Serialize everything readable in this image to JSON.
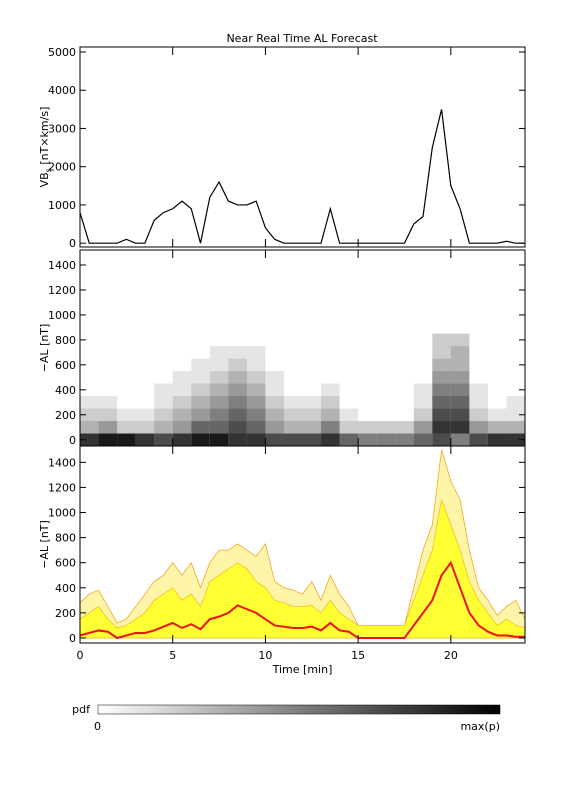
{
  "title": "Near Real Time AL Forecast",
  "chart_data": [
    {
      "type": "line",
      "ylabel": "VB",
      "ylabel_sub": "s",
      "ylabel_unit": " [nT×km/s]",
      "xlim": [
        0,
        24
      ],
      "xticks": [
        0,
        5,
        10,
        15,
        20
      ],
      "show_xticklabels": false,
      "ylim": [
        -100,
        5130
      ],
      "yticks": [
        0,
        1000,
        2000,
        3000,
        4000,
        5000
      ],
      "x": [
        0,
        0.5,
        1,
        1.5,
        2,
        2.5,
        3,
        3.5,
        4,
        4.5,
        5,
        5.5,
        6,
        6.5,
        7,
        7.5,
        8,
        8.5,
        9,
        9.5,
        10,
        10.5,
        11,
        11.5,
        12,
        12.5,
        13,
        13.5,
        14,
        14.5,
        15,
        15.5,
        16,
        16.5,
        17,
        17.5,
        18,
        18.5,
        19,
        19.5,
        20,
        20.5,
        21,
        21.5,
        22,
        22.5,
        23,
        23.5,
        24
      ],
      "series": [
        {
          "color": "#000000",
          "values": [
            800,
            0,
            0,
            0,
            0,
            100,
            0,
            0,
            600,
            800,
            900,
            1100,
            900,
            0,
            1200,
            1600,
            1100,
            1000,
            1000,
            1100,
            400,
            100,
            0,
            0,
            0,
            0,
            0,
            900,
            0,
            0,
            0,
            0,
            0,
            0,
            0,
            0,
            500,
            700,
            2500,
            3500,
            1500,
            900,
            0,
            0,
            0,
            0,
            50,
            0,
            0
          ]
        }
      ]
    },
    {
      "type": "heatmap",
      "ylabel": "−AL [nT]",
      "xlim": [
        0,
        24
      ],
      "xticks": [
        0,
        5,
        10,
        15,
        20
      ],
      "show_xticklabels": false,
      "ylim": [
        -50,
        1520
      ],
      "yticks": [
        0,
        200,
        400,
        600,
        800,
        1000,
        1200,
        1400
      ],
      "color": "#000000",
      "x_edges": [
        0,
        1,
        2,
        3,
        4,
        5,
        6,
        7,
        8,
        9,
        10,
        11,
        12,
        13,
        14,
        15,
        16,
        17,
        18,
        19,
        20,
        21,
        22,
        23,
        24
      ],
      "y_edges": [
        -50,
        50,
        150,
        250,
        350,
        450,
        550,
        650,
        750,
        850
      ],
      "z": [
        [
          0.8,
          0.9,
          0.9,
          0.8,
          0.7,
          0.8,
          0.9,
          0.9,
          0.8,
          0.8,
          0.7,
          0.7,
          0.7,
          0.8,
          0.6,
          0.5,
          0.5,
          0.5,
          0.6,
          0.7,
          0.5,
          0.7,
          0.8,
          0.8
        ],
        [
          0.3,
          0.4,
          0.2,
          0.2,
          0.3,
          0.4,
          0.6,
          0.6,
          0.7,
          0.6,
          0.4,
          0.3,
          0.3,
          0.5,
          0.2,
          0.2,
          0.2,
          0.2,
          0.4,
          0.8,
          0.8,
          0.4,
          0.3,
          0.3
        ],
        [
          0.2,
          0.2,
          0.1,
          0.1,
          0.2,
          0.3,
          0.4,
          0.5,
          0.6,
          0.5,
          0.3,
          0.2,
          0.2,
          0.3,
          0.1,
          0,
          0,
          0,
          0.2,
          0.7,
          0.7,
          0.2,
          0.1,
          0.1
        ],
        [
          0.1,
          0.1,
          0,
          0,
          0.1,
          0.2,
          0.3,
          0.4,
          0.5,
          0.4,
          0.2,
          0.1,
          0.1,
          0.2,
          0,
          0,
          0,
          0,
          0.1,
          0.6,
          0.6,
          0.1,
          0,
          0.1
        ],
        [
          0,
          0,
          0,
          0,
          0.1,
          0.1,
          0.2,
          0.3,
          0.4,
          0.3,
          0.1,
          0,
          0,
          0.1,
          0,
          0,
          0,
          0,
          0.1,
          0.5,
          0.5,
          0.1,
          0,
          0
        ],
        [
          0,
          0,
          0,
          0,
          0,
          0.1,
          0.1,
          0.2,
          0.3,
          0.2,
          0.1,
          0,
          0,
          0,
          0,
          0,
          0,
          0,
          0,
          0.4,
          0.4,
          0,
          0,
          0
        ],
        [
          0,
          0,
          0,
          0,
          0,
          0,
          0.1,
          0.1,
          0.2,
          0.1,
          0,
          0,
          0,
          0,
          0,
          0,
          0,
          0,
          0,
          0.3,
          0.3,
          0,
          0,
          0
        ],
        [
          0,
          0,
          0,
          0,
          0,
          0,
          0,
          0.1,
          0.1,
          0.1,
          0,
          0,
          0,
          0,
          0,
          0,
          0,
          0,
          0,
          0.2,
          0.3,
          0,
          0,
          0
        ],
        [
          0,
          0,
          0,
          0,
          0,
          0,
          0,
          0,
          0,
          0,
          0,
          0,
          0,
          0,
          0,
          0,
          0,
          0,
          0,
          0.2,
          0.2,
          0,
          0,
          0
        ]
      ]
    },
    {
      "type": "area",
      "ylabel": "−AL [nT]",
      "xlabel": "Time [min]",
      "xlim": [
        0,
        24
      ],
      "xticks": [
        0,
        5,
        10,
        15,
        20
      ],
      "show_xticklabels": true,
      "ylim": [
        -40,
        1530
      ],
      "yticks": [
        0,
        200,
        400,
        600,
        800,
        1000,
        1200,
        1400
      ],
      "x": [
        0,
        0.5,
        1,
        1.5,
        2,
        2.5,
        3,
        3.5,
        4,
        4.5,
        5,
        5.5,
        6,
        6.5,
        7,
        7.5,
        8,
        8.5,
        9,
        9.5,
        10,
        10.5,
        11,
        11.5,
        12,
        12.5,
        13,
        13.5,
        14,
        14.5,
        15,
        15.5,
        16,
        16.5,
        17,
        17.5,
        18,
        18.5,
        19,
        19.5,
        20,
        20.5,
        21,
        21.5,
        22,
        22.5,
        23,
        23.5,
        24
      ],
      "series": [
        {
          "color": "#fff5a8",
          "edge_color": "#f5a623",
          "values": [
            280,
            350,
            380,
            250,
            120,
            150,
            250,
            350,
            450,
            500,
            600,
            500,
            600,
            400,
            600,
            700,
            700,
            750,
            700,
            650,
            750,
            450,
            400,
            380,
            350,
            450,
            300,
            500,
            350,
            250,
            100,
            100,
            100,
            100,
            100,
            100,
            400,
            700,
            900,
            1500,
            1250,
            1100,
            700,
            400,
            300,
            180,
            250,
            300,
            150
          ]
        },
        {
          "color": "#ffff33",
          "edge_color": "#f0c020",
          "values": [
            150,
            200,
            250,
            150,
            80,
            100,
            150,
            200,
            300,
            350,
            400,
            300,
            350,
            250,
            450,
            500,
            550,
            600,
            550,
            450,
            400,
            300,
            280,
            250,
            250,
            260,
            200,
            300,
            200,
            150,
            100,
            100,
            100,
            100,
            100,
            100,
            300,
            500,
            700,
            1100,
            900,
            700,
            450,
            300,
            200,
            100,
            150,
            100,
            80
          ]
        },
        {
          "color": "#ee1111",
          "values": [
            20,
            40,
            60,
            50,
            0,
            20,
            40,
            40,
            60,
            90,
            120,
            80,
            110,
            70,
            150,
            170,
            200,
            260,
            230,
            200,
            150,
            100,
            90,
            80,
            80,
            90,
            60,
            120,
            60,
            50,
            0,
            0,
            0,
            0,
            0,
            0,
            100,
            200,
            300,
            500,
            600,
            400,
            200,
            100,
            50,
            20,
            20,
            10,
            10
          ]
        }
      ]
    }
  ],
  "colorbar": {
    "title": "pdf",
    "min_label": "0",
    "max_label": "max(p)"
  }
}
